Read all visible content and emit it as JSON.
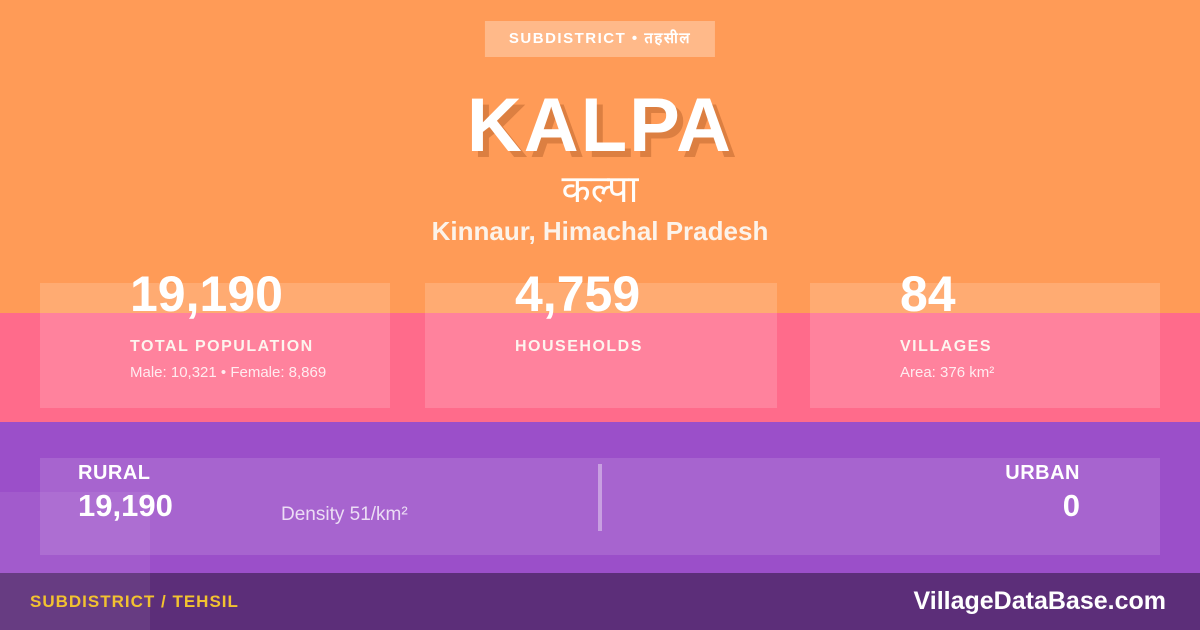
{
  "badge": {
    "label": "SUBDISTRICT • तहसील"
  },
  "header": {
    "title": "KALPA",
    "native_name": "कल्पा",
    "location": "Kinnaur, Himachal Pradesh"
  },
  "stats": [
    {
      "value": "19,190",
      "label": "TOTAL POPULATION",
      "detail": "Male: 10,321 • Female: 8,869"
    },
    {
      "value": "4,759",
      "label": "HOUSEHOLDS",
      "detail": ""
    },
    {
      "value": "84",
      "label": "VILLAGES",
      "detail": "Area: 376 km²"
    }
  ],
  "breakdown": {
    "rural_label": "RURAL",
    "rural_value": "19,190",
    "density": "Density 51/km²",
    "urban_label": "URBAN",
    "urban_value": "0"
  },
  "footer": {
    "type_label": "SUBDISTRICT / TEHSIL",
    "site": "VillageDataBase.com"
  },
  "colors": {
    "background_orange": "#ff9b57",
    "band_pink": "#ff6b8b",
    "band_purple": "#9b4fc9",
    "footer_purple": "#5c2e79",
    "accent_yellow": "#f2c230",
    "text_white": "#ffffff"
  }
}
